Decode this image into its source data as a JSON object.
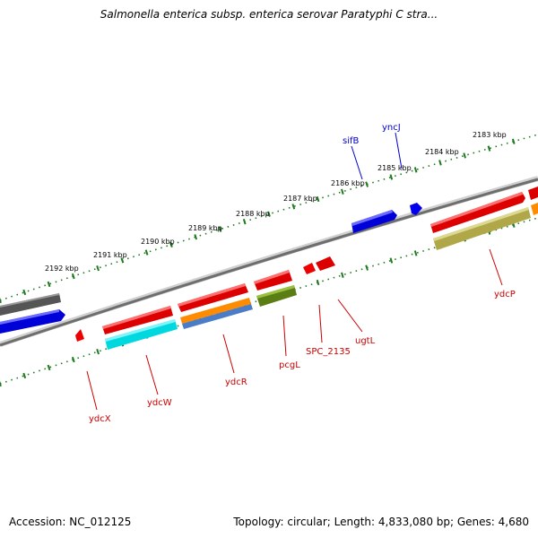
{
  "header": {
    "title": "Salmonella enterica subsp. enterica serovar Paratyphi C stra..."
  },
  "footer": {
    "accession": "Accession: NC_012125",
    "summary": "Topology: circular; Length: 4,833,080 bp; Genes: 4,680"
  },
  "colors": {
    "backbone": "#8a8a8a",
    "tick": "#1e7a1e",
    "label_red": "#cc0000",
    "label_blue": "#0000cc"
  },
  "scale": {
    "outer_ticks": [
      "2183 kbp",
      "2184 kbp",
      "2185 kbp",
      "2186 kbp",
      "2187 kbp",
      "2188 kbp",
      "2189 kbp",
      "2190 kbp",
      "2191 kbp",
      "2192 kbp"
    ]
  },
  "genes": {
    "outer_labels": [
      "yncJ",
      "sifB"
    ],
    "inner_labels": [
      "ydcP",
      "ugtL",
      "SPC_2135",
      "pcgL",
      "ydcR",
      "ydcW",
      "ydcX"
    ]
  }
}
